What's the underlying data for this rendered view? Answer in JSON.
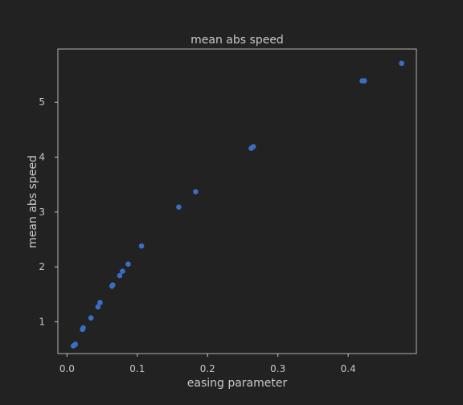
{
  "chart_data": {
    "type": "scatter",
    "title": "mean abs speed",
    "xlabel": "easing parameter",
    "ylabel": "mean abs speed",
    "xlim": [
      -0.013,
      0.497
    ],
    "ylim": [
      0.42,
      5.97
    ],
    "xticks": [
      0.0,
      0.1,
      0.2,
      0.3,
      0.4
    ],
    "xtick_labels": [
      "0.0",
      "0.1",
      "0.2",
      "0.3",
      "0.4"
    ],
    "yticks": [
      1,
      2,
      3,
      4,
      5
    ],
    "ytick_labels": [
      "1",
      "2",
      "3",
      "4",
      "5"
    ],
    "grid": false,
    "colors": {
      "background": "#222222",
      "marker": "#3a6ec4",
      "text": "#c8c8c8",
      "frame": "#9a9a9a"
    },
    "points": [
      {
        "x": 0.009,
        "y": 0.56
      },
      {
        "x": 0.011,
        "y": 0.58
      },
      {
        "x": 0.012,
        "y": 0.59
      },
      {
        "x": 0.022,
        "y": 0.86
      },
      {
        "x": 0.023,
        "y": 0.89
      },
      {
        "x": 0.034,
        "y": 1.07
      },
      {
        "x": 0.044,
        "y": 1.27
      },
      {
        "x": 0.047,
        "y": 1.35
      },
      {
        "x": 0.064,
        "y": 1.65
      },
      {
        "x": 0.065,
        "y": 1.67
      },
      {
        "x": 0.075,
        "y": 1.84
      },
      {
        "x": 0.079,
        "y": 1.92
      },
      {
        "x": 0.087,
        "y": 2.05
      },
      {
        "x": 0.106,
        "y": 2.38
      },
      {
        "x": 0.159,
        "y": 3.09
      },
      {
        "x": 0.183,
        "y": 3.37
      },
      {
        "x": 0.262,
        "y": 4.16
      },
      {
        "x": 0.265,
        "y": 4.19
      },
      {
        "x": 0.42,
        "y": 5.39
      },
      {
        "x": 0.423,
        "y": 5.39
      },
      {
        "x": 0.476,
        "y": 5.71
      }
    ]
  }
}
